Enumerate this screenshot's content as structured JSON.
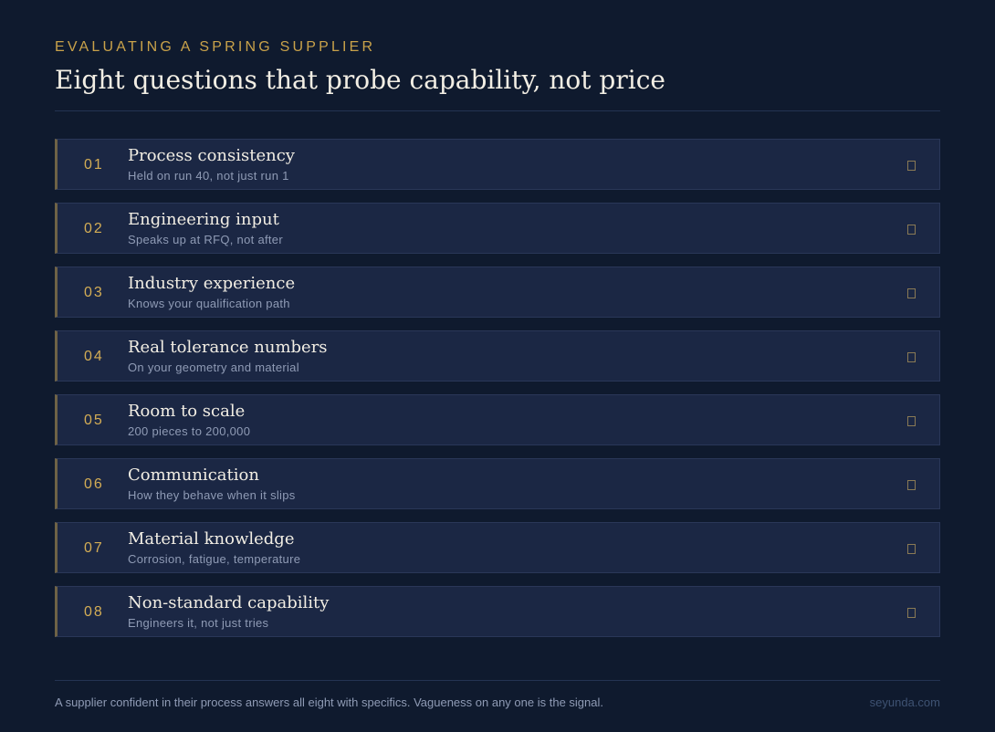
{
  "header": {
    "eyebrow": "EVALUATING A SPRING SUPPLIER",
    "title": "Eight questions that probe capability, not price"
  },
  "items": [
    {
      "number": "01",
      "title": "Process consistency",
      "subtitle": "Held on run 40, not just run 1"
    },
    {
      "number": "02",
      "title": "Engineering input",
      "subtitle": "Speaks up at RFQ, not after"
    },
    {
      "number": "03",
      "title": "Industry experience",
      "subtitle": "Knows your qualification path"
    },
    {
      "number": "04",
      "title": "Real tolerance numbers",
      "subtitle": "On your geometry and material"
    },
    {
      "number": "05",
      "title": "Room to scale",
      "subtitle": "200 pieces to 200,000"
    },
    {
      "number": "06",
      "title": "Communication",
      "subtitle": "How they behave when it slips"
    },
    {
      "number": "07",
      "title": "Material knowledge",
      "subtitle": "Corrosion, fatigue, temperature"
    },
    {
      "number": "08",
      "title": "Non-standard capability",
      "subtitle": "Engineers it, not just tries"
    }
  ],
  "footer": {
    "note": "A supplier confident in their process answers all eight with specifics. Vagueness on any one is the signal.",
    "site": "seyunda.com"
  }
}
